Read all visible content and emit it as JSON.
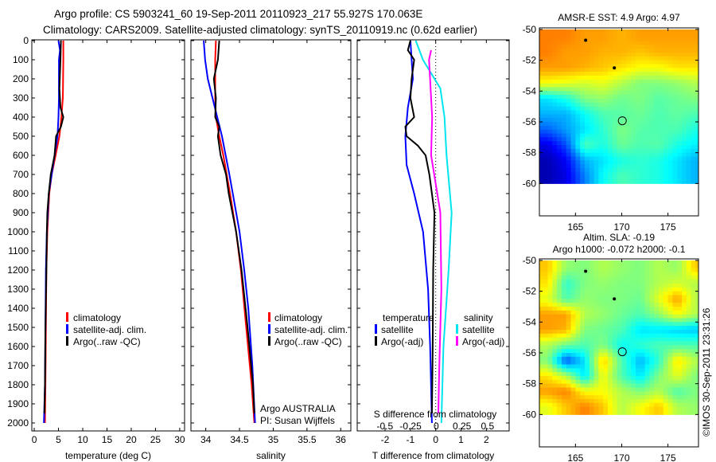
{
  "title": {
    "line1": "Argo profile: CS 5903241_60 19-Sep-2011 20110923_217 55.927S 170.063E",
    "line2": "Climatology: CARS2009. Satellite-adjusted climatology: synTS_20110919.nc (0.62d earlier)"
  },
  "colors": {
    "climatology": "#ff0000",
    "satellite": "#0000ff",
    "argo": "#000000",
    "sal_satellite": "#00e5ee",
    "sal_argo": "#ff00ff"
  },
  "chart_data": [
    {
      "type": "line",
      "name": "temperature-profile",
      "xlabel": "temperature (deg C)",
      "ylabel": "",
      "xlim": [
        -0.5,
        31
      ],
      "ylim": [
        2050,
        0
      ],
      "xticks": [
        "0",
        "5",
        "10",
        "15",
        "20",
        "25",
        "30"
      ],
      "xtick_values": [
        0,
        5,
        10,
        15,
        20,
        25,
        30
      ],
      "yticks": [
        "0",
        "100",
        "200",
        "300",
        "400",
        "500",
        "600",
        "700",
        "800",
        "900",
        "1000",
        "1100",
        "1200",
        "1300",
        "1400",
        "1500",
        "1600",
        "1700",
        "1800",
        "1900",
        "2000"
      ],
      "legend": [
        "climatology",
        "satellite-adj. clim.",
        "Argo(..raw -QC)"
      ],
      "series": [
        {
          "name": "climatology",
          "color": "#ff0000",
          "depth": [
            0,
            100,
            300,
            400,
            500,
            600,
            700,
            800,
            1000,
            1200,
            1500,
            1800,
            2000
          ],
          "values": [
            6.0,
            6.0,
            5.9,
            5.6,
            5.2,
            4.4,
            3.6,
            3.1,
            2.7,
            2.5,
            2.4,
            2.3,
            2.2
          ]
        },
        {
          "name": "satellite-adj. clim.",
          "color": "#0000ff",
          "depth": [
            0,
            50,
            100,
            300,
            400,
            500,
            600,
            700,
            800,
            1000,
            1200,
            1500,
            1800,
            2000
          ],
          "values": [
            5.0,
            5.3,
            5.1,
            5.1,
            5.0,
            4.8,
            4.2,
            3.6,
            3.0,
            2.6,
            2.4,
            2.3,
            2.2,
            2.0
          ]
        },
        {
          "name": "Argo(..raw -QC)",
          "color": "#000000",
          "depth": [
            0,
            100,
            250,
            350,
            400,
            450,
            500,
            600,
            700,
            800,
            900,
            1000,
            1200,
            1500,
            1800,
            1950
          ],
          "values": [
            5.5,
            5.4,
            5.2,
            5.4,
            6.0,
            5.5,
            4.5,
            4.2,
            3.4,
            3.0,
            2.7,
            2.6,
            2.5,
            2.3,
            2.2,
            2.1
          ]
        }
      ]
    },
    {
      "type": "line",
      "name": "salinity-profile",
      "xlabel": "salinity",
      "xlim": [
        33.78,
        36.15
      ],
      "ylim": [
        2050,
        0
      ],
      "xticks": [
        "34",
        "34.5",
        "35",
        "35.5",
        "36"
      ],
      "xtick_values": [
        34,
        34.5,
        35,
        35.5,
        36
      ],
      "legend": [
        "climatology",
        "satellite-adj. clim.",
        "Argo(..raw -QC)"
      ],
      "annotations": [
        "Argo AUSTRALIA",
        "PI: Susan Wijffels"
      ],
      "series": [
        {
          "name": "climatology",
          "color": "#ff0000",
          "depth": [
            0,
            100,
            300,
            400,
            500,
            600,
            800,
            1000,
            1200,
            1500,
            1800,
            2000
          ],
          "values": [
            34.15,
            34.14,
            34.14,
            34.15,
            34.2,
            34.26,
            34.36,
            34.45,
            34.52,
            34.6,
            34.68,
            34.72
          ]
        },
        {
          "name": "satellite-adj. clim.",
          "color": "#0000ff",
          "depth": [
            0,
            100,
            200,
            300,
            500,
            700,
            800,
            1000,
            1200,
            1400,
            1700,
            2000
          ],
          "values": [
            33.97,
            33.99,
            34.03,
            34.1,
            34.24,
            34.35,
            34.4,
            34.5,
            34.57,
            34.63,
            34.69,
            34.73
          ]
        },
        {
          "name": "Argo(..raw -QC)",
          "color": "#000000",
          "depth": [
            0,
            100,
            200,
            300,
            400,
            450,
            500,
            600,
            700,
            800,
            1000,
            1200,
            1500,
            1800,
            1950
          ],
          "values": [
            34.2,
            34.18,
            34.12,
            34.15,
            34.14,
            34.2,
            34.18,
            34.22,
            34.3,
            34.34,
            34.45,
            34.53,
            34.62,
            34.7,
            34.72
          ]
        }
      ]
    },
    {
      "type": "line",
      "name": "difference-profile",
      "xlabel": "T difference from climatology",
      "xlabel_top": "S difference from climatology",
      "xlim": [
        -3.1,
        2.9
      ],
      "s_xlim": [
        -0.77,
        0.71
      ],
      "ylim": [
        2050,
        0
      ],
      "xticks": [
        "-2",
        "-1",
        "0",
        "1",
        "2"
      ],
      "xtick_values": [
        -2,
        -1,
        0,
        1,
        2
      ],
      "s_ticks": [
        "-0.5",
        "-0.25",
        "0",
        "0.25",
        "0.5"
      ],
      "s_tick_values": [
        -0.5,
        -0.25,
        0,
        0.25,
        0.5
      ],
      "legend_temperature": {
        "title": "temperature",
        "items": [
          "satellite",
          "Argo(-adj)"
        ]
      },
      "legend_salinity": {
        "title": "salinity",
        "items": [
          "satellite",
          "Argo(-adj)"
        ]
      },
      "series": [
        {
          "name": "T satellite",
          "axis": "T",
          "color": "#0000ff",
          "depth": [
            0,
            100,
            200,
            350,
            500,
            650,
            800,
            1000,
            1300,
            1600,
            2000
          ],
          "values": [
            -1.0,
            -0.95,
            -0.9,
            -1.1,
            -1.2,
            -1.15,
            -0.85,
            -0.5,
            -0.3,
            -0.22,
            -0.15
          ]
        },
        {
          "name": "T Argo(-adj)",
          "axis": "T",
          "color": "#000000",
          "depth": [
            0,
            50,
            100,
            200,
            300,
            400,
            450,
            500,
            550,
            600,
            700,
            900,
            1200,
            1600,
            1950
          ],
          "values": [
            -1.0,
            -1.1,
            -0.85,
            -0.95,
            -1.0,
            -0.85,
            -1.2,
            -1.15,
            -0.7,
            -0.4,
            -0.25,
            -0.05,
            -0.1,
            -0.12,
            -0.15
          ]
        },
        {
          "name": "S satellite",
          "axis": "S",
          "color": "#00e5ee",
          "depth": [
            0,
            100,
            250,
            400,
            600,
            900,
            1200,
            1600,
            2000
          ],
          "values": [
            -0.2,
            -0.13,
            0.04,
            0.08,
            0.1,
            0.15,
            0.12,
            0.07,
            0.05
          ]
        },
        {
          "name": "S Argo(-adj)",
          "axis": "S",
          "color": "#ff00ff",
          "depth": [
            50,
            100,
            300,
            400,
            600,
            700,
            900,
            1300,
            1700,
            1950
          ],
          "values": [
            -0.05,
            -0.07,
            -0.05,
            -0.04,
            -0.05,
            -0.02,
            0.04,
            0.05,
            0.03,
            0.02
          ]
        }
      ]
    },
    {
      "type": "heatmap",
      "name": "sst-map",
      "title": "AMSR-E SST: 4.9 Argo: 4.97",
      "xticks": [
        "165",
        "170",
        "175"
      ],
      "xtick_values": [
        165,
        170,
        175
      ],
      "yticks": [
        "-50",
        "-52",
        "-54",
        "-56",
        "-58",
        "-60"
      ],
      "ytick_values": [
        -50,
        -52,
        -54,
        -56,
        -58,
        -60
      ],
      "xlim": [
        161.1,
        178.3
      ],
      "ylim": [
        -62.1,
        -49.9
      ],
      "grid_lon": [
        161,
        179
      ],
      "grid_lat": [
        -50,
        -60
      ],
      "profile_location": [
        170.063,
        -55.927
      ],
      "islands": [
        [
          166.1,
          -50.7
        ],
        [
          169.2,
          -52.5
        ]
      ],
      "values": [
        [
          0.75,
          0.75,
          0.72,
          0.72,
          0.7,
          0.72,
          0.72,
          0.72,
          0.72
        ],
        [
          0.75,
          0.72,
          0.72,
          0.7,
          0.7,
          0.68,
          0.7,
          0.7,
          0.7
        ],
        [
          0.72,
          0.72,
          0.7,
          0.68,
          0.65,
          0.62,
          0.62,
          0.65,
          0.65
        ],
        [
          0.62,
          0.6,
          0.58,
          0.6,
          0.55,
          0.5,
          0.5,
          0.52,
          0.55
        ],
        [
          0.35,
          0.4,
          0.5,
          0.52,
          0.48,
          0.5,
          0.46,
          0.48,
          0.5
        ],
        [
          0.3,
          0.3,
          0.38,
          0.45,
          0.46,
          0.48,
          0.45,
          0.47,
          0.45
        ],
        [
          0.22,
          0.28,
          0.35,
          0.42,
          0.5,
          0.46,
          0.45,
          0.45,
          0.4
        ],
        [
          0.1,
          0.2,
          0.45,
          0.4,
          0.48,
          0.45,
          0.46,
          0.4,
          0.36
        ],
        [
          0.05,
          0.12,
          0.3,
          0.35,
          0.4,
          0.42,
          0.4,
          0.35,
          0.3
        ],
        [
          0.05,
          0.1,
          0.25,
          0.38,
          0.45,
          0.42,
          0.4,
          0.35,
          0.3
        ]
      ]
    },
    {
      "type": "heatmap",
      "name": "sla-map",
      "title": "Altim. SLA: -0.19",
      "subtitle": "Argo h1000: -0.072 h2000: -0.1",
      "xticks": [
        "165",
        "170",
        "175"
      ],
      "xtick_values": [
        165,
        170,
        175
      ],
      "yticks": [
        "-50",
        "-52",
        "-54",
        "-56",
        "-58",
        "-60"
      ],
      "ytick_values": [
        -50,
        -52,
        -54,
        -56,
        -58,
        -60
      ],
      "xlim": [
        161.1,
        178.3
      ],
      "ylim": [
        -62.1,
        -49.9
      ],
      "grid_lon": [
        161,
        179
      ],
      "grid_lat": [
        -50,
        -60
      ],
      "profile_location": [
        170.063,
        -55.927
      ],
      "islands": [
        [
          166.1,
          -50.7
        ],
        [
          169.2,
          -52.5
        ]
      ],
      "values": [
        [
          0.68,
          0.52,
          0.5,
          0.55,
          0.52,
          0.5,
          0.55,
          0.52,
          0.68
        ],
        [
          0.65,
          0.42,
          0.5,
          0.52,
          0.5,
          0.5,
          0.55,
          0.58,
          0.55
        ],
        [
          0.6,
          0.45,
          0.52,
          0.5,
          0.5,
          0.48,
          0.6,
          0.72,
          0.55
        ],
        [
          0.72,
          0.72,
          0.55,
          0.52,
          0.48,
          0.45,
          0.52,
          0.62,
          0.55
        ],
        [
          0.72,
          0.7,
          0.5,
          0.48,
          0.45,
          0.35,
          0.35,
          0.33,
          0.32
        ],
        [
          0.55,
          0.48,
          0.45,
          0.5,
          0.38,
          0.42,
          0.45,
          0.45,
          0.45
        ],
        [
          0.5,
          0.2,
          0.35,
          0.68,
          0.45,
          0.3,
          0.42,
          0.65,
          0.55
        ],
        [
          0.65,
          0.55,
          0.35,
          0.62,
          0.45,
          0.35,
          0.5,
          0.6,
          0.5
        ],
        [
          0.72,
          0.75,
          0.62,
          0.62,
          0.55,
          0.5,
          0.55,
          0.45,
          0.5
        ],
        [
          0.6,
          0.68,
          0.75,
          0.68,
          0.55,
          0.62,
          0.68,
          0.55,
          0.52
        ]
      ]
    }
  ],
  "credit": "©IMOS 30-Sep-2011 23:31:26"
}
